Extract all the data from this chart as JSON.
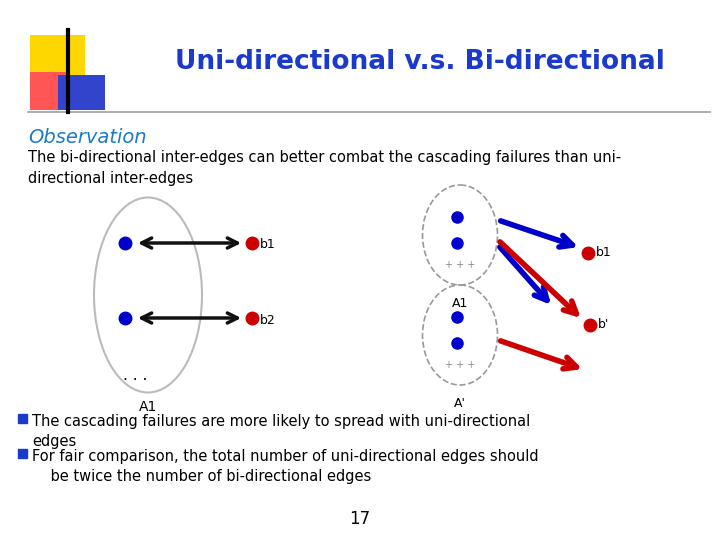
{
  "title": "Uni-directional v.s. Bi-directional",
  "title_color": "#1a3acc",
  "title_fontsize": 19,
  "observation_label": "Observation",
  "observation_color": "#1a7acc",
  "observation_fontsize": 14,
  "desc_text": "The bi-directional inter-edges can better combat the cascading failures than uni-\ndirectional inter-edges",
  "desc_fontsize": 10.5,
  "bullet1": "The cascading failures are more likely to spread with uni-directional\nedges",
  "bullet2": "For fair comparison, the total number of uni-directional edges should\n    be twice the number of bi-directional edges",
  "bullet_fontsize": 10.5,
  "bullet_color": "#1a3acc",
  "page_number": "17",
  "bg_color": "#ffffff",
  "node_blue": "#0000cc",
  "node_red": "#cc0000",
  "arrow_black": "#111111",
  "arrow_blue": "#0000cc",
  "arrow_red": "#cc0000",
  "deco_yellow": "#ffd700",
  "deco_red": "#ff5555",
  "deco_blue": "#3344cc"
}
